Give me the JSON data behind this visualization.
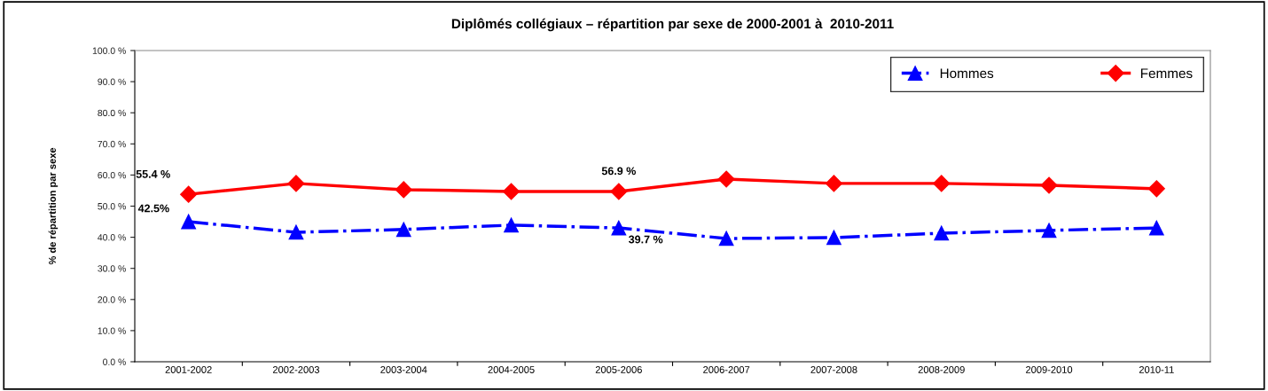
{
  "chart_data": {
    "type": "line",
    "title": "Diplômés collégiaux – répartition par sexe de 2000-2001 à  2010-2011",
    "ylabel": "% de répartition par sexe",
    "categories": [
      "2001-2002",
      "2002-2003",
      "2003-2004",
      "2004-2005",
      "2005-2006",
      "2006-2007",
      "2007-2008",
      "2008-2009",
      "2009-2010",
      "2010-11"
    ],
    "series": [
      {
        "name": "Hommes",
        "color": "#0000ff",
        "marker": "triangle",
        "line_style": "dashdot",
        "values": [
          45.0,
          41.6,
          42.5,
          43.9,
          43.0,
          39.6,
          39.9,
          41.3,
          42.2,
          43.0
        ]
      },
      {
        "name": "Femmes",
        "color": "#ff0000",
        "marker": "diamond",
        "line_style": "solid",
        "values": [
          53.8,
          57.3,
          55.3,
          54.7,
          54.7,
          58.7,
          57.3,
          57.3,
          56.7,
          55.6
        ]
      }
    ],
    "ylim": [
      0,
      100
    ],
    "yticks": [
      {
        "value": 0,
        "label": "0.0 %"
      },
      {
        "value": 10,
        "label": "10.0 %"
      },
      {
        "value": 20,
        "label": "20.0 %"
      },
      {
        "value": 30,
        "label": "30.0 %"
      },
      {
        "value": 40,
        "label": "40.0 %"
      },
      {
        "value": 50,
        "label": "50.0 %"
      },
      {
        "value": 60,
        "label": "60.0 %"
      },
      {
        "value": 70,
        "label": "70.0 %"
      },
      {
        "value": 80,
        "label": "80.0 %"
      },
      {
        "value": 90,
        "label": "90.0 %"
      },
      {
        "value": 100,
        "label": "100.0 %"
      }
    ],
    "annotations": [
      "55.4 %",
      "42.5%",
      "56.9 %",
      "39.7 %"
    ],
    "grid": false,
    "legend": "top right"
  }
}
